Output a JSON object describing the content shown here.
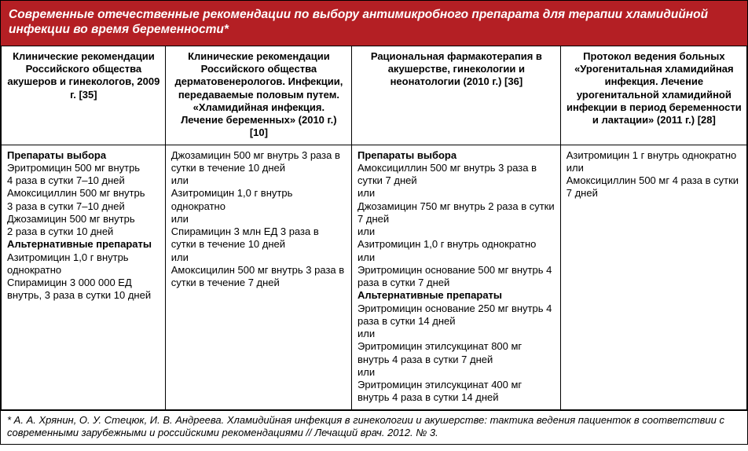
{
  "colors": {
    "header_bg": "#b41f24",
    "header_text": "#ffffff",
    "cell_bg": "#ffffff",
    "cell_text": "#000000",
    "border": "#000000"
  },
  "title": "Современные отечественные рекомендации по выбору антимикробного препарата для терапии хламидийной инфекции во время беременности*",
  "columns": [
    "Клинические рекомендации Российского общества акушеров и гинекологов, 2009 г. [35]",
    "Клинические рекомендации Российского общества дерматовенерологов. Инфекции, передаваемые половым путем. «Хламидийная инфекция. Лечение беременных» (2010 г.) [10]",
    "Рациональная фармакотерапия в акушерстве, гинекологии и неонатологии (2010 г.) [36]",
    "Протокол ведения больных «Урогенитальная хламидийная инфекция. Лечение урогенитальной хламидийной инфекции в период беременности и лактации» (2011 г.) [28]"
  ],
  "col_widths_pct": [
    22,
    25,
    28,
    25
  ],
  "cells": {
    "c0": {
      "h0": "Препараты выбора",
      "l0": "Эритромицин 500 мг внутрь",
      "l1": "4 раза в сутки 7–10 дней",
      "l2": "Амоксициллин 500 мг внутрь",
      "l3": "3 раза в сутки 7–10 дней",
      "l4": "Джозамицин 500 мг внутрь",
      "l5": "2 раза в сутки 10 дней",
      "h1": "Альтернативные препараты",
      "l6": "Азитромицин 1,0 г внутрь однократно",
      "l7": "Спирамицин 3 000 000 ЕД внутрь, 3 раза в сутки 10 дней"
    },
    "c1": {
      "l0": "Джозамицин 500 мг внутрь 3 раза в сутки в течение 10 дней",
      "l1": "или",
      "l2": "Азитромицин 1,0 г внутрь однократно",
      "l3": "или",
      "l4": "Спирамицин 3 млн ЕД 3 раза в сутки в течение 10 дней",
      "l5": "или",
      "l6": "Амоксицилин 500 мг внутрь 3 раза в сутки в течение 7 дней"
    },
    "c2": {
      "h0": "Препараты выбора",
      "l0": "Амоксициллин 500 мг внутрь 3 раза в сутки 7 дней",
      "l1": "или",
      "l2": "Джозамицин 750 мг внутрь 2 раза в сутки 7 дней",
      "l3": "или",
      "l4": "Азитромицин 1,0 г внутрь однократно",
      "l5": "или",
      "l6": "Эритромицин основание 500 мг внутрь 4 раза в сутки 7 дней",
      "h1": "Альтернативные препараты",
      "l7": "Эритромицин основание 250 мг внутрь 4 раза в сутки 14 дней",
      "l8": "или",
      "l9": "Эритромицин этилсукцинат 800 мг внутрь 4 раза в сутки 7 дней",
      "l10": "или",
      "l11": "Эритромицин этилсукцинат 400 мг внутрь 4 раза в сутки 14 дней"
    },
    "c3": {
      "l0": "Азитромицин 1 г внутрь однократно",
      "l1": "или",
      "l2": "Амоксициллин 500 мг 4 раза в сутки 7 дней"
    }
  },
  "footnote": "* А. А. Хрянин, О. У. Стецюк, И. В. Андреева. Хламидийная инфекция в гинекологии и акушерстве: тактика ведения пациенток в соответствии с современными зарубежными и российскими рекомендациями // Лечащий врач. 2012. № 3."
}
